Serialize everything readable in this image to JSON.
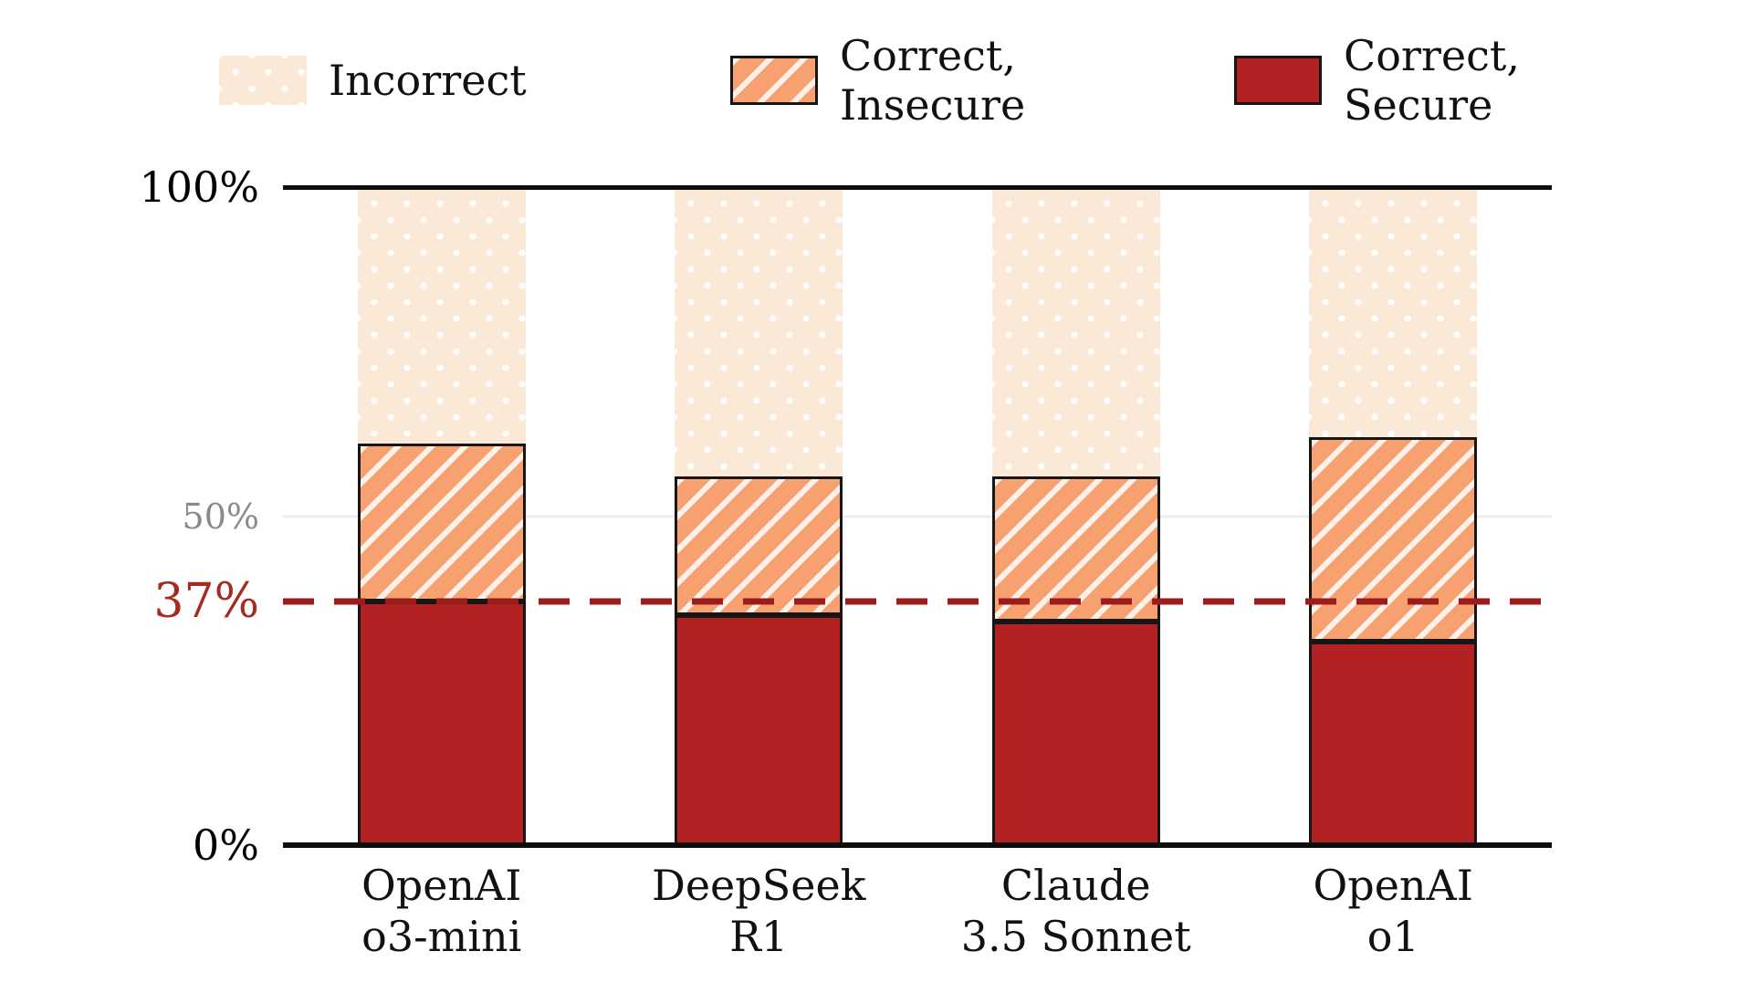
{
  "chart_data": {
    "type": "bar",
    "stacked": true,
    "title": "",
    "xlabel": "",
    "ylabel": "",
    "ylim": [
      0,
      100
    ],
    "grid": "single-line-at-50",
    "legend_position": "top",
    "categories": [
      {
        "line1": "OpenAI",
        "line2": "o3-mini"
      },
      {
        "line1": "DeepSeek",
        "line2": "R1"
      },
      {
        "line1": "Claude",
        "line2": "3.5 Sonnet"
      },
      {
        "line1": "OpenAI",
        "line2": "o1"
      }
    ],
    "series": [
      {
        "name": "Correct, Secure",
        "key": "correct-secure",
        "values": [
          37,
          35,
          34,
          31
        ],
        "color": "#b22222",
        "pattern": "solid"
      },
      {
        "name": "Correct, Insecure",
        "key": "correct-insecure",
        "values": [
          24,
          21,
          22,
          31
        ],
        "color": "#f7a171",
        "pattern": "hatch"
      },
      {
        "name": "Incorrect",
        "key": "incorrect",
        "values": [
          39,
          44,
          44,
          38
        ],
        "color": "#fbe9d8",
        "pattern": "dots"
      }
    ],
    "yticks": [
      {
        "label": "100%",
        "value": 100,
        "color": "#000000",
        "kind": "major"
      },
      {
        "label": "50%",
        "value": 50,
        "color": "#8a8a8a",
        "kind": "minor"
      },
      {
        "label": "37%",
        "value": 37,
        "color": "#a52a21",
        "kind": "reference"
      },
      {
        "label": "0%",
        "value": 0,
        "color": "#000000",
        "kind": "major"
      }
    ],
    "gridline": {
      "value": 50,
      "color": "#ececec"
    },
    "reference_line": {
      "value": 37,
      "color": "#9c1c1c",
      "style": "dashed"
    },
    "legend": [
      {
        "line1": "Incorrect",
        "line2": "",
        "swatch": "dots",
        "color": "#fbe9d8"
      },
      {
        "line1": "Correct,",
        "line2": "Insecure",
        "swatch": "hatch",
        "color": "#f7a171"
      },
      {
        "line1": "Correct,",
        "line2": "Secure",
        "swatch": "solid",
        "color": "#b22222"
      }
    ]
  }
}
